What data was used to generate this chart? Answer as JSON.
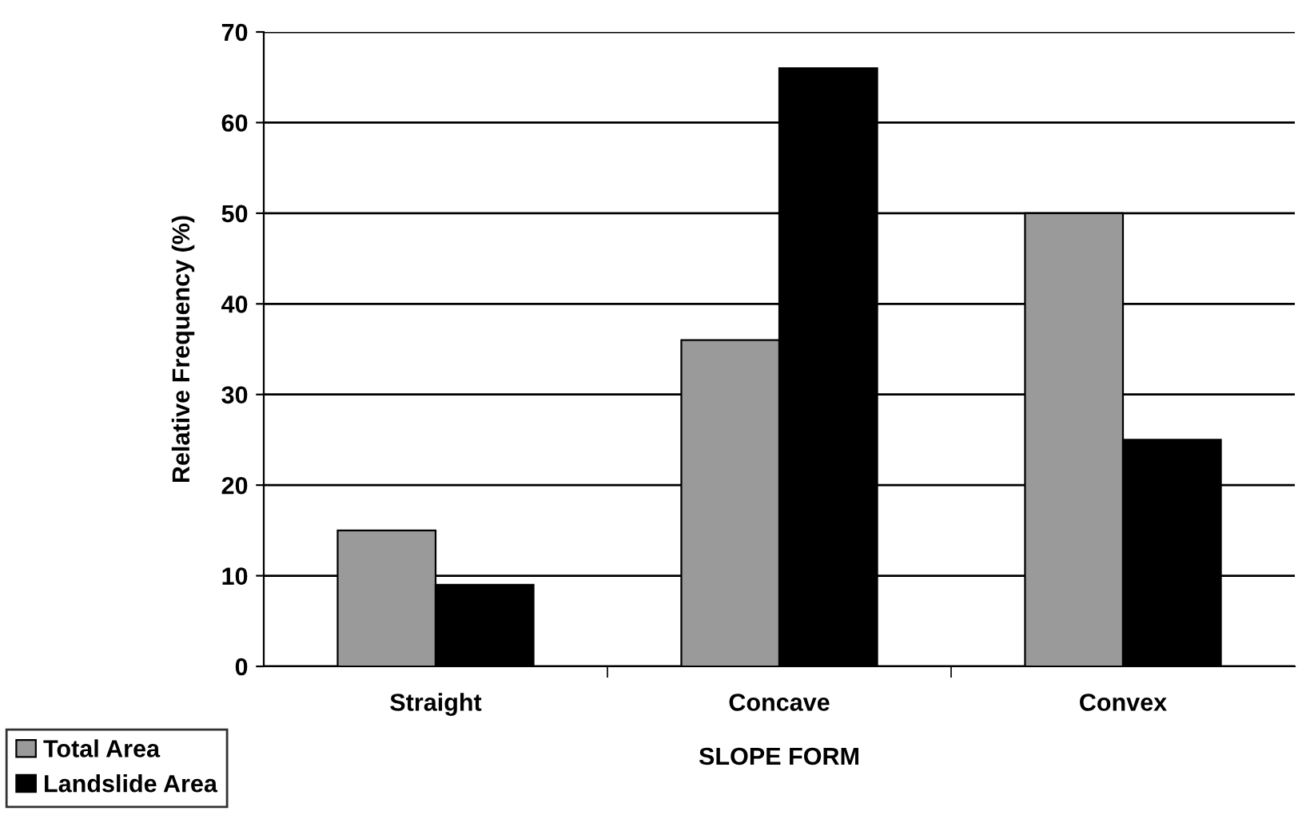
{
  "chart_data": {
    "type": "bar",
    "xlabel": "SLOPE FORM",
    "ylabel": "Relative Frequency (%)",
    "categories": [
      "Straight",
      "Concave",
      "Convex"
    ],
    "series": [
      {
        "name": "Total Area",
        "color": "#9a9a9a",
        "values": [
          15,
          36,
          50
        ]
      },
      {
        "name": "Landslide Area",
        "color": "#000000",
        "values": [
          9,
          66,
          25
        ]
      }
    ],
    "ylim": [
      0,
      70
    ],
    "yticks": [
      0,
      10,
      20,
      30,
      40,
      50,
      60,
      70
    ],
    "grid": "y",
    "legend": "bottom left"
  }
}
